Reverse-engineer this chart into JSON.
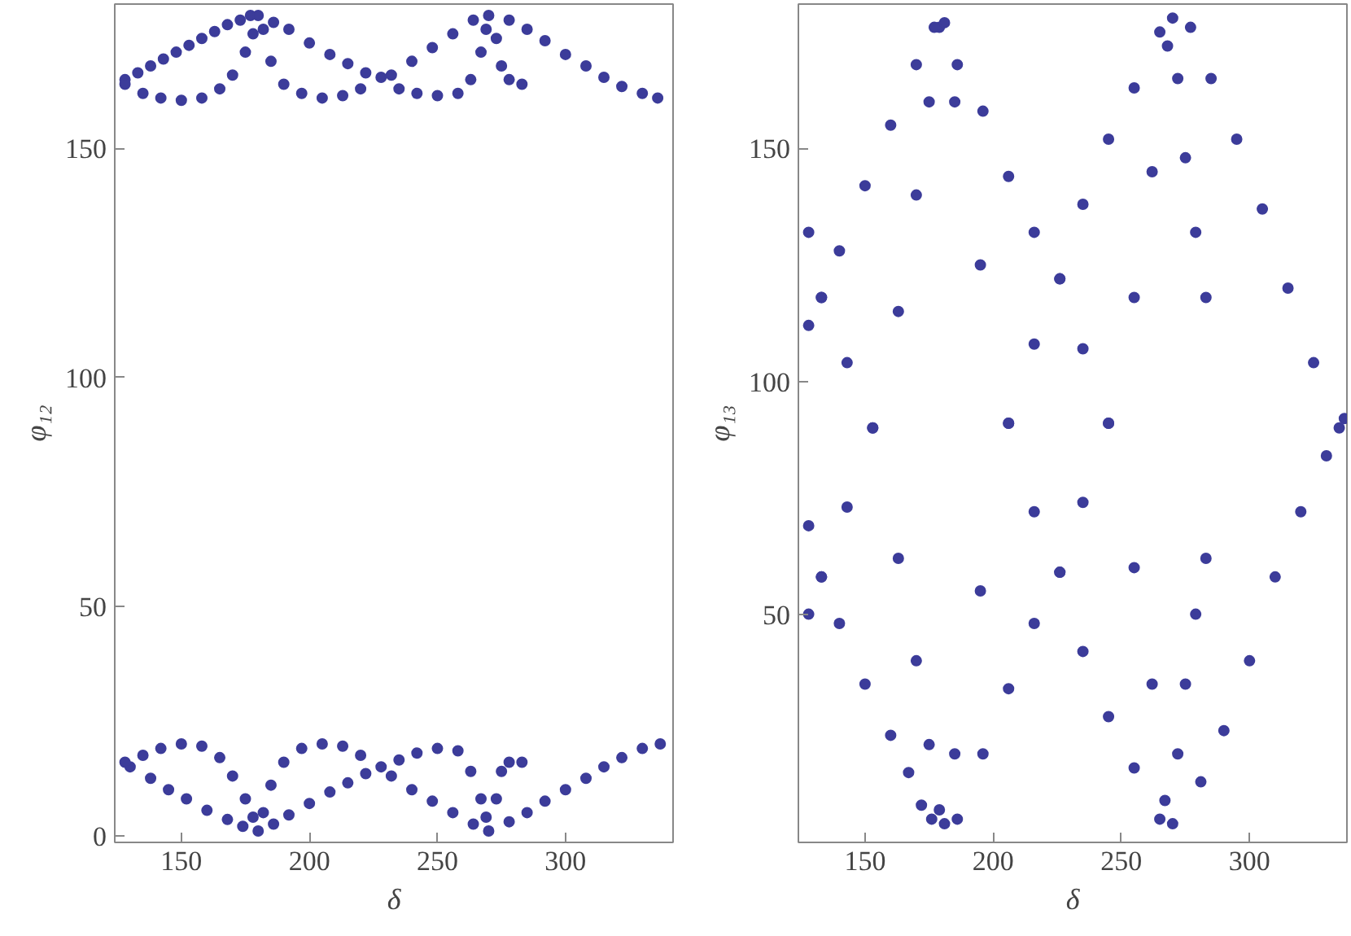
{
  "chart_data": [
    {
      "type": "scatter",
      "xlabel": "δ",
      "ylabel": "φ₁₂",
      "marker": "circle",
      "grid": false,
      "color": "#3c3c9a",
      "xlim": [
        124,
        342
      ],
      "ylim": [
        -1.5,
        181.5
      ],
      "xticks": [
        150,
        200,
        250,
        300
      ],
      "yticks": [
        0,
        50,
        100,
        150
      ],
      "x": [
        128,
        133,
        138,
        143,
        148,
        153,
        158,
        163,
        168,
        173,
        177,
        128,
        135,
        142,
        150,
        158,
        165,
        170,
        175,
        178,
        180,
        182,
        185,
        190,
        197,
        205,
        213,
        220,
        228,
        235,
        242,
        250,
        258,
        263,
        267,
        269,
        270,
        186,
        192,
        200,
        208,
        215,
        222,
        232,
        240,
        248,
        256,
        264,
        273,
        275,
        278,
        283,
        278,
        285,
        292,
        300,
        308,
        315,
        322,
        330,
        336,
        130,
        138,
        145,
        152,
        160,
        168,
        174,
        128,
        135,
        142,
        150,
        158,
        165,
        170,
        175,
        178,
        180,
        182,
        185,
        190,
        197,
        205,
        213,
        220,
        228,
        235,
        242,
        250,
        258,
        263,
        267,
        269,
        270,
        186,
        192,
        200,
        208,
        215,
        222,
        232,
        240,
        248,
        256,
        264,
        273,
        275,
        278,
        283,
        278,
        285,
        292,
        300,
        308,
        315,
        322,
        330,
        337
      ],
      "values": [
        165,
        166.5,
        168,
        169.5,
        171,
        172.5,
        174,
        175.5,
        177,
        178,
        179,
        164,
        162,
        161,
        160.5,
        161,
        163,
        166,
        171,
        175,
        179,
        176,
        169,
        164,
        162,
        161,
        161.5,
        163,
        165.5,
        163,
        162,
        161.5,
        162,
        165,
        171,
        176,
        179,
        177.5,
        176,
        173,
        170.5,
        168.5,
        166.5,
        166,
        169,
        172,
        175,
        178,
        174,
        168,
        165,
        164,
        178,
        176,
        173.5,
        170.5,
        168,
        165.5,
        163.5,
        162,
        161,
        15,
        12.5,
        10,
        8,
        5.5,
        3.5,
        2,
        16,
        17.5,
        19,
        20,
        19.5,
        17,
        13,
        8,
        4,
        1,
        5,
        11,
        16,
        19,
        20,
        19.5,
        17.5,
        15,
        16.5,
        18,
        19,
        18.5,
        14,
        8,
        4,
        1,
        2.5,
        4.5,
        7,
        9.5,
        11.5,
        13.5,
        13,
        10,
        7.5,
        5,
        2.5,
        8,
        14,
        16,
        16,
        3,
        5,
        7.5,
        10,
        12.5,
        15,
        17,
        19,
        20
      ]
    },
    {
      "type": "scatter",
      "xlabel": "δ",
      "ylabel": "φ₁₃",
      "marker": "circle",
      "grid": false,
      "color": "#3c3c9a",
      "xlim": [
        124,
        338
      ],
      "ylim": [
        1,
        181
      ],
      "xticks": [
        150,
        200,
        250,
        300
      ],
      "yticks": [
        50,
        100,
        150
      ],
      "x": [
        128,
        133,
        143,
        153,
        163,
        170,
        175,
        179,
        128,
        133,
        143,
        153,
        163,
        170,
        175,
        179,
        128,
        133,
        140,
        150,
        160,
        170,
        177,
        128,
        133,
        140,
        150,
        160,
        167,
        172,
        176,
        181,
        185,
        195,
        206,
        216,
        226,
        235,
        245,
        255,
        265,
        186,
        196,
        206,
        216,
        226,
        235,
        245,
        255,
        262,
        267,
        181,
        185,
        195,
        206,
        216,
        226,
        235,
        245,
        255,
        265,
        186,
        196,
        206,
        216,
        226,
        235,
        245,
        255,
        262,
        268,
        270,
        272,
        275,
        279,
        283,
        270,
        272,
        275,
        279,
        283,
        277,
        285,
        295,
        305,
        315,
        325,
        335,
        281,
        290,
        300,
        310,
        320,
        330,
        337
      ],
      "values": [
        132,
        118,
        104,
        90,
        62,
        40,
        22,
        8,
        50,
        58,
        73,
        90,
        115,
        140,
        160,
        176,
        112,
        118,
        128,
        142,
        155,
        168,
        176,
        69,
        58,
        48,
        35,
        24,
        16,
        9,
        6,
        177,
        160,
        125,
        91,
        72,
        59,
        42,
        28,
        17,
        6,
        168,
        158,
        144,
        132,
        122,
        107,
        91,
        60,
        35,
        10,
        5,
        20,
        55,
        91,
        108,
        122,
        138,
        152,
        163,
        175,
        6,
        20,
        34,
        48,
        59,
        74,
        91,
        118,
        145,
        172,
        178,
        165,
        148,
        132,
        118,
        5,
        20,
        35,
        50,
        62,
        176,
        165,
        152,
        137,
        120,
        104,
        90,
        14,
        25,
        40,
        58,
        72,
        84,
        92
      ]
    }
  ]
}
